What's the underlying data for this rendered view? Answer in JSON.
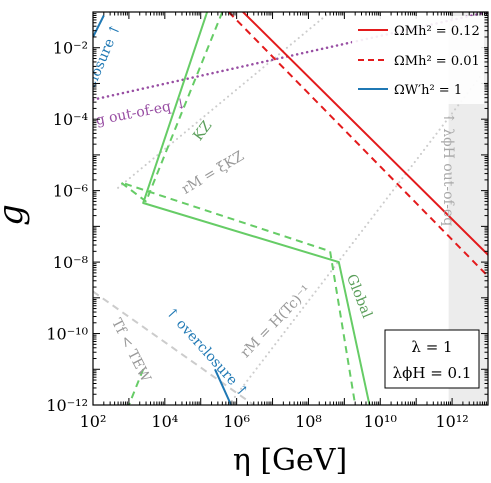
{
  "chart_data": {
    "type": "line",
    "x_scale": "log",
    "y_scale": "log",
    "xlim": [
      100,
      10000000000000.0
    ],
    "ylim": [
      1e-12,
      0.1
    ],
    "xlabel": "η [GeV]",
    "ylabel": "g",
    "x_ticks": [
      {
        "value": 100,
        "label": "10²"
      },
      {
        "value": 10000,
        "label": "10⁴"
      },
      {
        "value": 1000000,
        "label": "10⁶"
      },
      {
        "value": 100000000,
        "label": "10⁸"
      },
      {
        "value": 10000000000,
        "label": "10¹⁰"
      },
      {
        "value": 1000000000000,
        "label": "10¹²"
      }
    ],
    "y_ticks": [
      {
        "value": 1e-12,
        "label": "10⁻¹²"
      },
      {
        "value": 1e-10,
        "label": "10⁻¹⁰"
      },
      {
        "value": 1e-08,
        "label": "10⁻⁸"
      },
      {
        "value": 1e-06,
        "label": "10⁻⁶"
      },
      {
        "value": 0.0001,
        "label": "10⁻⁴"
      },
      {
        "value": 0.01,
        "label": "10⁻²"
      }
    ],
    "legend": {
      "placement": "top-right",
      "entries": [
        {
          "label": "ΩMh² = 0.12",
          "color": "#e31a1c",
          "style": "solid"
        },
        {
          "label": "ΩMh² = 0.01",
          "color": "#e31a1c",
          "style": "dashed"
        },
        {
          "label": "ΩW′h² = 1",
          "color": "#1f78b4",
          "style": "solid"
        }
      ]
    },
    "param_box": {
      "lines": [
        "λ = 1",
        "λϕH = 0.1"
      ],
      "placement": "bottom-right"
    },
    "shaded_region": {
      "x": [
        800000000000.0,
        10000000000000.0
      ],
      "color": "#ececec"
    },
    "series": [
      {
        "id": "red-solid",
        "color": "#e31a1c",
        "style": "solid",
        "width": 2,
        "x": [
          1500000.0,
          10000000000000.0
        ],
        "y": [
          0.1,
          1.6e-08
        ]
      },
      {
        "id": "red-dashed",
        "color": "#e31a1c",
        "style": "dashed",
        "width": 2,
        "x": [
          600000.0,
          10000000000000.0
        ],
        "y": [
          0.1,
          4e-09
        ]
      },
      {
        "id": "blue-top",
        "color": "#1f78b4",
        "style": "solid",
        "width": 2,
        "x": [
          100,
          200
        ],
        "y": [
          0.02,
          0.08
        ]
      },
      {
        "id": "blue-bottom",
        "color": "#1f78b4",
        "style": "solid",
        "width": 2,
        "x": [
          250000.0,
          700000.0
        ],
        "y": [
          1e-11,
          1e-12
        ]
      },
      {
        "id": "green-solid",
        "color": "#66cc66",
        "style": "solid",
        "width": 2,
        "x": [
          150000.0,
          2500,
          700000000.0,
          5000000000.0
        ],
        "y": [
          0.1,
          4.5e-07,
          1e-08,
          1e-12
        ]
      },
      {
        "id": "green-dashed",
        "color": "#66cc66",
        "style": "dashed",
        "width": 2,
        "x": [
          400000.0,
          3000,
          600,
          400000000.0,
          2000000000.0
        ],
        "y": [
          0.1,
          5e-07,
          1.7e-06,
          2e-08,
          1e-12
        ]
      },
      {
        "id": "green-dashed-left",
        "color": "#66cc66",
        "style": "dashed",
        "width": 2,
        "x": [
          2500,
          1000
        ],
        "y": [
          1e-11,
          1e-12
        ]
      },
      {
        "id": "purple-dotted",
        "color": "#984ea3",
        "style": "dotted",
        "width": 2.5,
        "x": [
          100,
          10000000000000.0
        ],
        "y": [
          0.00035,
          0.1
        ]
      },
      {
        "id": "grey-kz",
        "color": "#cccccc",
        "style": "dotted",
        "width": 2,
        "x": [
          500,
          400000000.0
        ],
        "y": [
          1.2e-06,
          0.1
        ]
      },
      {
        "id": "grey-hubble",
        "color": "#cccccc",
        "style": "dotted",
        "width": 2,
        "x": [
          600000.0,
          10000000000000.0
        ],
        "y": [
          1e-12,
          0.003
        ]
      },
      {
        "id": "grey-tew",
        "color": "#cccccc",
        "style": "dashed",
        "width": 2,
        "x": [
          100,
          3000000.0
        ],
        "y": [
          1.5e-09,
          1e-12
        ]
      }
    ],
    "annotations": [
      {
        "text": "↑ overclosure ↑",
        "color": "#1f78b4",
        "x": 140,
        "y": 0.0013,
        "rotation": -67
      },
      {
        "text": "↓ g out-of-eq ↓",
        "color": "#984ea3",
        "x": 1400,
        "y": 0.00011,
        "rotation": -11
      },
      {
        "text": "KZ",
        "color": "#5a9e5a",
        "x": 140000.0,
        "y": 4e-05,
        "rotation": -53
      },
      {
        "text": "rM = ξKZ",
        "color": "#999999",
        "x": 250000.0,
        "y": 2.5e-06,
        "rotation": -31
      },
      {
        "text": "Global",
        "color": "#5a9e5a",
        "x": 2000000000.0,
        "y": 1e-09,
        "rotation": 68
      },
      {
        "text": "rM = H(Tc)⁻¹",
        "color": "#999999",
        "x": 15000000.0,
        "y": 1.8e-10,
        "rotation": -46
      },
      {
        "text": "Tf < TEW",
        "color": "#999999",
        "x": 900,
        "y": 3e-11,
        "rotation": 63
      },
      {
        "text": "↑ overclosure ↑",
        "color": "#1f78b4",
        "x": 120000.0,
        "y": 2.5e-11,
        "rotation": 48
      },
      {
        "text": "↑ λϕH out-of-eq",
        "color": "#a8a8a8",
        "x": 600000000000.0,
        "y": 4e-06,
        "rotation": 90
      }
    ]
  }
}
